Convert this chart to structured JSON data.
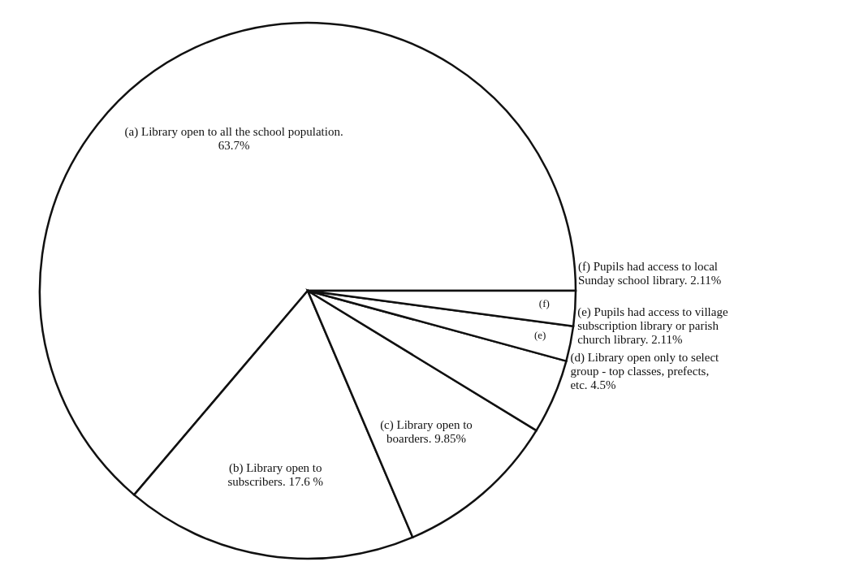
{
  "chart_data": {
    "type": "pie",
    "categories": [
      "(a) Library open to all the school population.",
      "(b) Library open to subscribers.",
      "(c) Library open to boarders.",
      "(d) Library open only to select group - top classes, prefects, etc.",
      "(e) Pupils had access to village subscription library or parish church library.",
      "(f) Pupils had access to local Sunday school library."
    ],
    "values": [
      63.7,
      17.6,
      9.85,
      4.5,
      2.11,
      2.11
    ],
    "value_labels": [
      "63.7%",
      "17.6 %",
      "9.85%",
      "4.5%",
      "2.11%",
      "2.11%"
    ],
    "colors": [
      "#ffffff",
      "#ffffff",
      "#ffffff",
      "#ffffff",
      "#ffffff",
      "#ffffff"
    ],
    "annotations": [
      {
        "text": "(f)",
        "x": "(f) Pupils had access to local Sunday school library."
      },
      {
        "text": "(e)",
        "x": "(e) Pupils had access to village subscription library or parish church library."
      }
    ]
  }
}
